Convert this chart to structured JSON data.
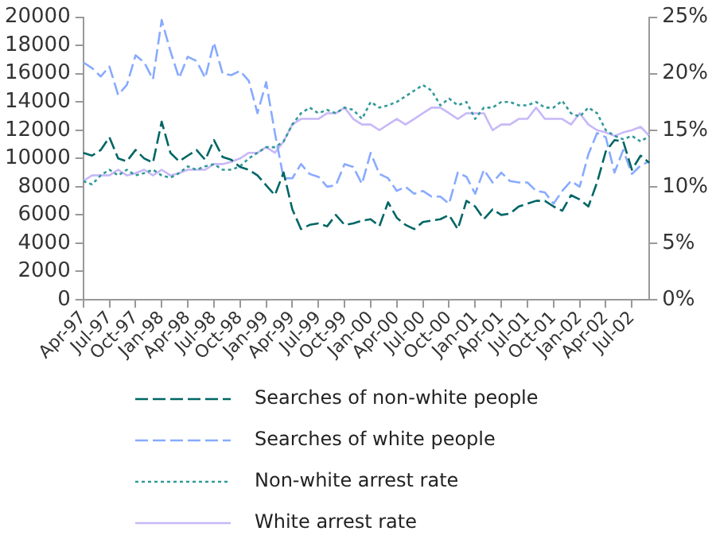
{
  "chart_data": {
    "type": "line",
    "categories": [
      "Apr-97",
      null,
      null,
      "Jul-97",
      null,
      null,
      "Oct-97",
      null,
      null,
      "Jan-98",
      null,
      null,
      "Apr-98",
      null,
      null,
      "Jul-98",
      null,
      null,
      "Oct-98",
      null,
      null,
      "Jan-99",
      null,
      null,
      "Apr-99",
      null,
      null,
      "Jul-99",
      null,
      null,
      "Oct-99",
      null,
      null,
      "Jan-00",
      null,
      null,
      "Apr-00",
      null,
      null,
      "Jul-00",
      null,
      null,
      "Oct-00",
      null,
      null,
      "Jan-01",
      null,
      null,
      "Apr-01",
      null,
      null,
      "Jul-01",
      null,
      null,
      "Oct-01",
      null,
      null,
      "Jan-02",
      null,
      null,
      "Apr-02",
      null,
      null,
      "Jul-02",
      null,
      null
    ],
    "series": [
      {
        "name": "Searches of non-white people",
        "color": "#006666",
        "line_style": "dashed",
        "values": [
          10400,
          10200,
          10600,
          11500,
          10000,
          9800,
          10600,
          10000,
          9700,
          12600,
          10400,
          9800,
          10200,
          10600,
          9900,
          11300,
          10100,
          9900,
          9400,
          9200,
          8800,
          8100,
          7400,
          9000,
          6400,
          5000,
          5300,
          5400,
          5200,
          6000,
          5300,
          5400,
          5600,
          5700,
          5200,
          6900,
          5800,
          5300,
          5000,
          5500,
          5600,
          5700,
          6000,
          5000,
          7000,
          6600,
          5700,
          6400,
          6000,
          6100,
          6600,
          6800,
          7000,
          7000,
          6600,
          6300,
          7400,
          7100,
          6600,
          8300,
          10500,
          11300,
          11200,
          9200,
          10200,
          9700
        ]
      },
      {
        "name": "Searches of white people",
        "color": "#88aaff",
        "line_style": "dashed",
        "values": [
          16800,
          16400,
          15800,
          16500,
          14500,
          15200,
          17300,
          16800,
          15600,
          19800,
          17600,
          15700,
          17200,
          16900,
          15700,
          18200,
          16000,
          15900,
          16200,
          15500,
          13200,
          15400,
          11800,
          8600,
          8600,
          9600,
          8900,
          8700,
          8000,
          8100,
          9600,
          9400,
          8200,
          10400,
          8900,
          8600,
          7700,
          8000,
          7500,
          7700,
          7300,
          7300,
          6800,
          9000,
          8700,
          7500,
          9200,
          8300,
          9000,
          8400,
          8300,
          8300,
          7700,
          7600,
          6800,
          7700,
          8400,
          8000,
          10300,
          11800,
          11500,
          9000,
          10600,
          8900,
          9500,
          9800
        ]
      },
      {
        "name": "Non-white arrest rate",
        "color": "#339999",
        "line_style": "dotted",
        "axis": "y2",
        "values": [
          10.5,
          10.2,
          11.0,
          11.5,
          11.0,
          11.5,
          11.0,
          11.2,
          11.5,
          11.0,
          10.8,
          11.2,
          11.8,
          11.5,
          11.8,
          12.0,
          11.5,
          11.5,
          11.8,
          12.5,
          13.0,
          13.5,
          13.5,
          14.0,
          15.5,
          16.5,
          17.0,
          16.5,
          16.8,
          16.5,
          17.0,
          16.8,
          16.0,
          17.5,
          17.0,
          17.2,
          17.5,
          18.0,
          18.5,
          19.0,
          18.5,
          17.2,
          17.8,
          17.2,
          17.5,
          16.0,
          17.0,
          17.0,
          17.5,
          17.5,
          17.2,
          17.2,
          17.5,
          17.0,
          17.0,
          17.6,
          16.5,
          16.2,
          17.0,
          16.5,
          15.0,
          14.5,
          14.2,
          14.5,
          14.0,
          14.5
        ]
      },
      {
        "name": "White arrest rate",
        "color": "#c8b8f8",
        "line_style": "solid",
        "axis": "y2",
        "values": [
          10.5,
          11.0,
          11.0,
          11.0,
          11.5,
          11.0,
          11.2,
          11.5,
          11.0,
          11.5,
          11.0,
          11.2,
          11.5,
          11.5,
          11.5,
          12.0,
          12.0,
          12.2,
          12.5,
          13.0,
          13.0,
          13.5,
          13.0,
          14.0,
          15.5,
          16.0,
          16.0,
          16.0,
          16.5,
          16.5,
          17.0,
          16.0,
          15.5,
          15.5,
          15.0,
          15.5,
          16.0,
          15.5,
          16.0,
          16.5,
          17.0,
          17.0,
          16.5,
          16.0,
          16.5,
          16.5,
          16.5,
          15.0,
          15.5,
          15.5,
          16.0,
          16.0,
          17.0,
          16.0,
          16.0,
          16.0,
          15.5,
          16.5,
          15.5,
          15.0,
          14.8,
          14.5,
          14.8,
          15.0,
          15.3,
          14.5
        ]
      }
    ],
    "ylim": [
      0,
      20000
    ],
    "yticks": [
      0,
      2000,
      4000,
      6000,
      8000,
      10000,
      12000,
      14000,
      16000,
      18000,
      20000
    ],
    "y2lim": [
      0,
      25
    ],
    "y2ticks": [
      {
        "value": 0,
        "label": "0%"
      },
      {
        "value": 5,
        "label": "5%"
      },
      {
        "value": 10,
        "label": "10%"
      },
      {
        "value": 15,
        "label": "15%"
      },
      {
        "value": 20,
        "label": "20%"
      },
      {
        "value": 25,
        "label": "25%"
      }
    ],
    "grid": false,
    "legend": "bottom",
    "marker": "none"
  }
}
